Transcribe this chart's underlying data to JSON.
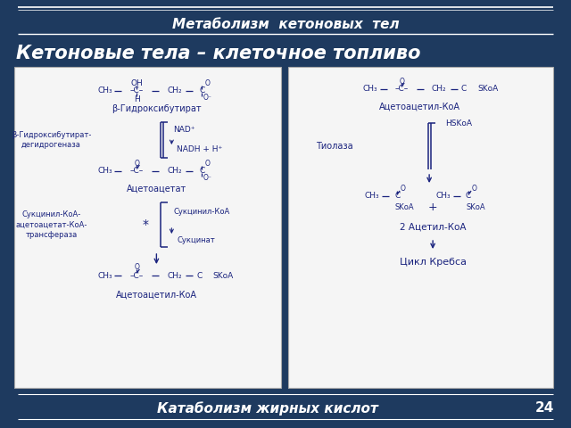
{
  "bg_color": "#1e3a5f",
  "title_text": "Метаболизм  кетоновых  тел",
  "subtitle_text": "Кетоновые тела – клеточное топливо",
  "footer_text": "Катаболизм жирных кислот",
  "page_number": "24",
  "white": "#ffffff",
  "panel_bg": "#f5f5f5",
  "tc": "#1a237e",
  "title_fontsize": 11,
  "subtitle_fontsize": 15,
  "footer_fontsize": 11,
  "chem_fontsize": 6.5,
  "label_fontsize": 7.0,
  "enzyme_fontsize": 6.0
}
